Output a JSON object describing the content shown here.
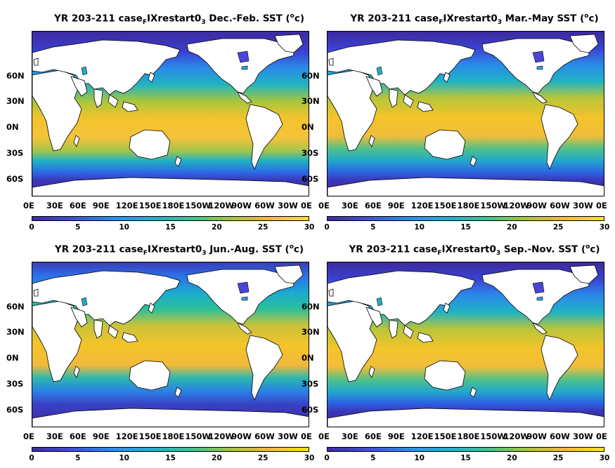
{
  "panels": [
    {
      "title_pre": "YR 203-211 case",
      "title_sub": "F",
      "title_mid": "IXrestart0",
      "title_sub2": "3",
      "title_post": " Dec.-Feb. SST (",
      "title_sup": "o",
      "title_end": "c)",
      "season": "DJF"
    },
    {
      "title_pre": "YR 203-211 case",
      "title_sub": "F",
      "title_mid": "IXrestart0",
      "title_sub2": "3",
      "title_post": " Mar.-May SST (",
      "title_sup": "o",
      "title_end": "c)",
      "season": "MAM"
    },
    {
      "title_pre": "YR 203-211 case",
      "title_sub": "F",
      "title_mid": "IXrestart0",
      "title_sub2": "3",
      "title_post": " Jun.-Aug. SST (",
      "title_sup": "o",
      "title_end": "c)",
      "season": "JJA"
    },
    {
      "title_pre": "YR 203-211 case",
      "title_sub": "F",
      "title_mid": "IXrestart0",
      "title_sub2": "3",
      "title_post": " Sep.-Nov. SST (",
      "title_sup": "o",
      "title_end": "c)",
      "season": "SON"
    }
  ],
  "lat_labels": [
    "60N",
    "30N",
    "0N",
    "30S",
    "60S"
  ],
  "lon_labels": [
    "0E",
    "30E",
    "60E",
    "90E",
    "120E",
    "150E",
    "180E",
    "150W",
    "120W",
    "90W",
    "60W",
    "30W",
    "0E"
  ],
  "colorbar_ticks": [
    "0",
    "5",
    "10",
    "15",
    "20",
    "25",
    "30"
  ],
  "colors": {
    "cold": "#3d2a9e",
    "mid": "#1bb4c5",
    "warm": "#f6e41c",
    "land": "#ffffff"
  },
  "chart_data": [
    {
      "type": "heatmap",
      "title": "YR 203-211 caseFIXrestart03 Dec.-Feb. SST (oc)",
      "x_ticks": [
        "0E",
        "30E",
        "60E",
        "90E",
        "120E",
        "150E",
        "180E",
        "150W",
        "120W",
        "90W",
        "60W",
        "30W",
        "0E"
      ],
      "y_ticks": [
        "60N",
        "30N",
        "0N",
        "30S",
        "60S"
      ],
      "colorbar_range": [
        0,
        30
      ]
    },
    {
      "type": "heatmap",
      "title": "YR 203-211 caseFIXrestart03 Mar.-May SST (oc)",
      "x_ticks": [
        "0E",
        "30E",
        "60E",
        "90E",
        "120E",
        "150E",
        "180E",
        "150W",
        "120W",
        "90W",
        "60W",
        "30W",
        "0E"
      ],
      "y_ticks": [
        "60N",
        "30N",
        "0N",
        "30S",
        "60S"
      ],
      "colorbar_range": [
        0,
        30
      ]
    },
    {
      "type": "heatmap",
      "title": "YR 203-211 caseFIXrestart03 Jun.-Aug. SST (oc)",
      "x_ticks": [
        "0E",
        "30E",
        "60E",
        "90E",
        "120E",
        "150E",
        "180E",
        "150W",
        "120W",
        "90W",
        "60W",
        "30W",
        "0E"
      ],
      "y_ticks": [
        "60N",
        "30N",
        "0N",
        "30S",
        "60S"
      ],
      "colorbar_range": [
        0,
        30
      ]
    },
    {
      "type": "heatmap",
      "title": "YR 203-211 caseFIXrestart03 Sep.-Nov. SST (oc)",
      "x_ticks": [
        "0E",
        "30E",
        "60E",
        "90E",
        "120E",
        "150E",
        "180E",
        "150W",
        "120W",
        "90W",
        "60W",
        "30W",
        "0E"
      ],
      "y_ticks": [
        "60N",
        "30N",
        "0N",
        "30S",
        "60S"
      ],
      "colorbar_range": [
        0,
        30
      ]
    }
  ]
}
